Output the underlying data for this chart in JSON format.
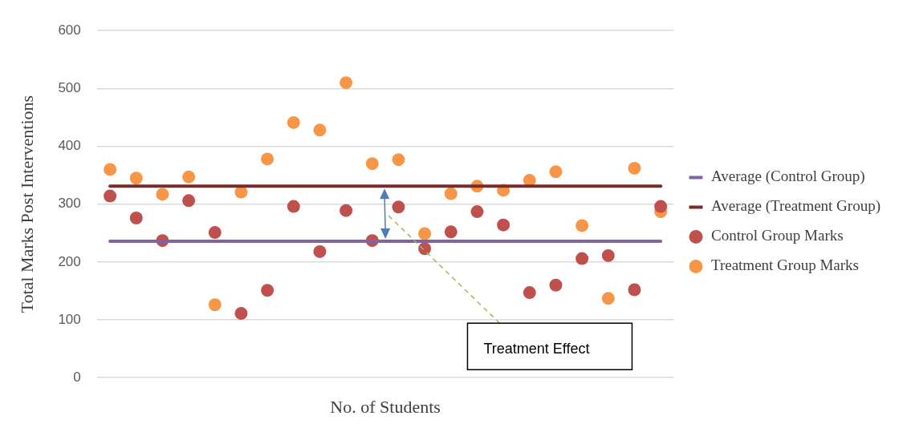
{
  "chart_data": {
    "type": "scatter",
    "ylabel": "Total Marks Post Interventions",
    "xlabel": "No. of Students",
    "categories": [
      null,
      null,
      null,
      null,
      null,
      null,
      null,
      null,
      null,
      null,
      null,
      null,
      null,
      null,
      null,
      null,
      null,
      null,
      null,
      null,
      null,
      null
    ],
    "ylim": [
      0,
      600
    ],
    "yticks": [
      0,
      100,
      200,
      300,
      400,
      500,
      600
    ],
    "grid": "y",
    "legend": "right",
    "annotations": [
      "Treatment Effect"
    ],
    "series": [
      {
        "name": "Average (Control Group)",
        "type": "line",
        "marker": "none",
        "color": "#8064a2",
        "values": [
          236,
          236,
          236,
          236,
          236,
          236,
          236,
          236,
          236,
          236,
          236,
          236,
          236,
          236,
          236,
          236,
          236,
          236,
          236,
          236,
          236,
          236
        ]
      },
      {
        "name": "Average (Treatment Group)",
        "type": "line",
        "marker": "none",
        "color": "#772c2a",
        "values": [
          331,
          331,
          331,
          331,
          331,
          331,
          331,
          331,
          331,
          331,
          331,
          331,
          331,
          331,
          331,
          331,
          331,
          331,
          331,
          331,
          331,
          331
        ]
      },
      {
        "name": "Control Group Marks",
        "marker": "circle",
        "color": "#c0504d",
        "values": [
          314,
          276,
          237,
          306,
          251,
          111,
          151,
          296,
          218,
          289,
          237,
          295,
          223,
          252,
          287,
          264,
          147,
          160,
          206,
          211,
          152,
          296
        ]
      },
      {
        "name": "Treatment Group Marks",
        "marker": "circle",
        "color": "#f79646",
        "values": [
          360,
          345,
          317,
          347,
          126,
          321,
          378,
          441,
          428,
          510,
          370,
          377,
          249,
          318,
          331,
          324,
          341,
          356,
          263,
          137,
          362,
          287
        ]
      }
    ]
  }
}
